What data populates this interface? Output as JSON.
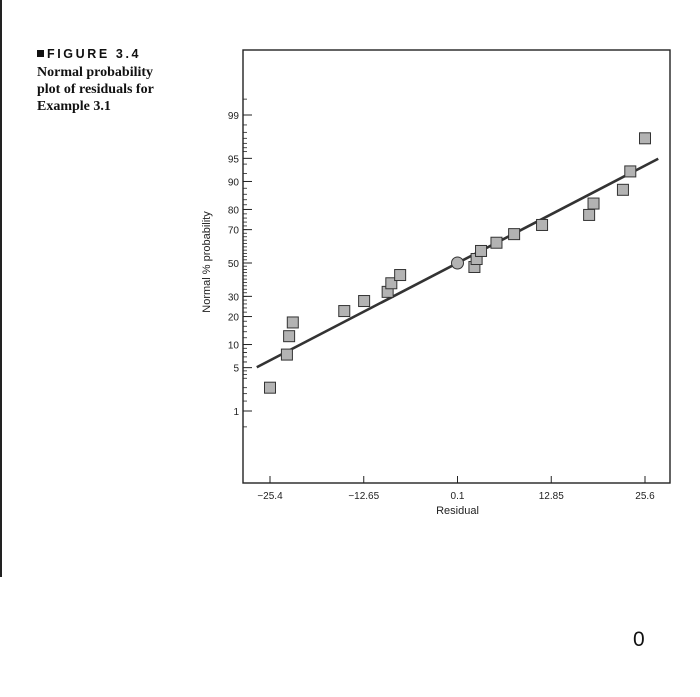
{
  "figure": {
    "label": "FIGURE 3.4",
    "caption_lines": [
      "Normal probability",
      "plot of residuals for",
      "Example 3.1"
    ]
  },
  "page_number": "0",
  "colors": {
    "marker_fill": "#b3b3b3",
    "marker_stroke": "#333333",
    "line": "#333333",
    "frame": "#222222"
  },
  "chart_data": {
    "type": "scatter",
    "title": "",
    "xlabel": "Residual",
    "ylabel": "Normal % probability",
    "xlim": [
      -27.2,
      27.4
    ],
    "x_ticks": [
      -25.4,
      -12.65,
      0.1,
      12.85,
      25.6
    ],
    "x_tick_labels": [
      "−25.4",
      "−12.65",
      "0.1",
      "12.85",
      "25.6"
    ],
    "y_scale": "normal-probability",
    "y_ticks": [
      1,
      5,
      10,
      20,
      30,
      50,
      70,
      80,
      90,
      95,
      99
    ],
    "y_tick_labels": [
      "1",
      "5",
      "10",
      "20",
      "30",
      "50",
      "70",
      "80",
      "90",
      "95",
      "99"
    ],
    "points": [
      {
        "x": -25.4,
        "y": 2.5
      },
      {
        "x": -23.1,
        "y": 7.5
      },
      {
        "x": -22.8,
        "y": 12.5
      },
      {
        "x": -22.3,
        "y": 17.5
      },
      {
        "x": -15.3,
        "y": 22.5
      },
      {
        "x": -12.6,
        "y": 27.5
      },
      {
        "x": -9.4,
        "y": 32.5
      },
      {
        "x": -8.9,
        "y": 37.5
      },
      {
        "x": -7.7,
        "y": 42.5
      },
      {
        "x": 2.4,
        "y": 47.5
      },
      {
        "x": 2.7,
        "y": 52.5
      },
      {
        "x": 3.3,
        "y": 57.5
      },
      {
        "x": 5.4,
        "y": 62.5
      },
      {
        "x": 7.8,
        "y": 67.5
      },
      {
        "x": 11.6,
        "y": 72.5
      },
      {
        "x": 18.0,
        "y": 77.5
      },
      {
        "x": 18.6,
        "y": 82.5
      },
      {
        "x": 22.6,
        "y": 87.5
      },
      {
        "x": 23.6,
        "y": 92.5
      },
      {
        "x": 25.6,
        "y": 97.5
      }
    ],
    "highlight_point": {
      "x": 0.1,
      "y": 50,
      "marker": "circle"
    },
    "fit_line": {
      "x": [
        -27.2,
        27.4
      ],
      "y": [
        5.06,
        94.94
      ]
    },
    "grid": false,
    "legend": "none"
  }
}
